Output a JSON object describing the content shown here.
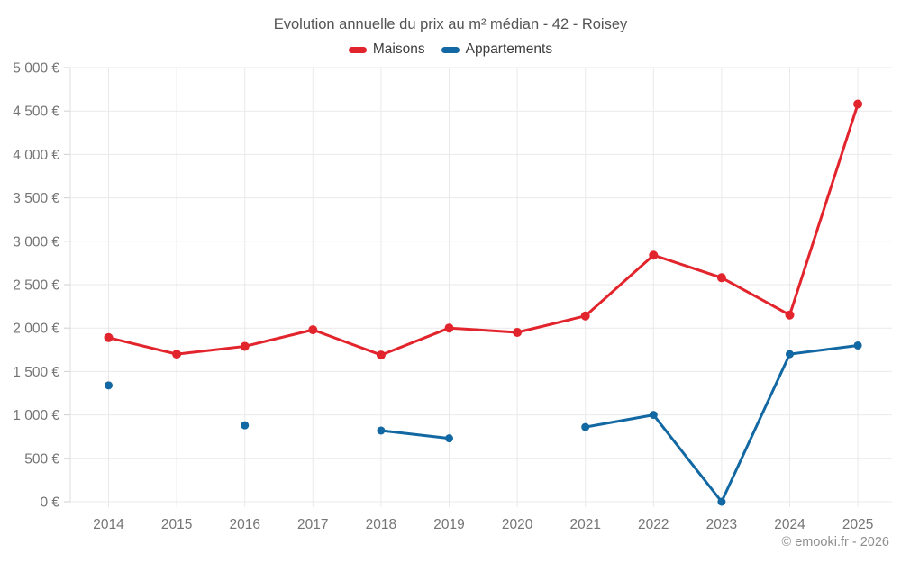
{
  "chart_data": {
    "type": "line",
    "title": "Evolution annuelle du prix au m² médian - 42 - Roisey",
    "categories": [
      "2014",
      "2015",
      "2016",
      "2017",
      "2018",
      "2019",
      "2020",
      "2021",
      "2022",
      "2023",
      "2024",
      "2025"
    ],
    "series": [
      {
        "name": "Maisons",
        "color": "#e2242c",
        "values": [
          1890,
          1700,
          1790,
          1980,
          1690,
          2000,
          1950,
          2140,
          2840,
          2580,
          2150,
          4580
        ]
      },
      {
        "name": "Appartements",
        "color": "#1268a2",
        "values": [
          1340,
          null,
          880,
          null,
          820,
          730,
          null,
          860,
          1000,
          0,
          1700,
          1800
        ]
      }
    ],
    "xlabel": "",
    "ylabel": "",
    "ylim": [
      0,
      5000
    ],
    "ytick_step": 500,
    "ytick_suffix": " €",
    "grid": true,
    "legend_position": "top",
    "footer": "© emooki.fr - 2026"
  }
}
